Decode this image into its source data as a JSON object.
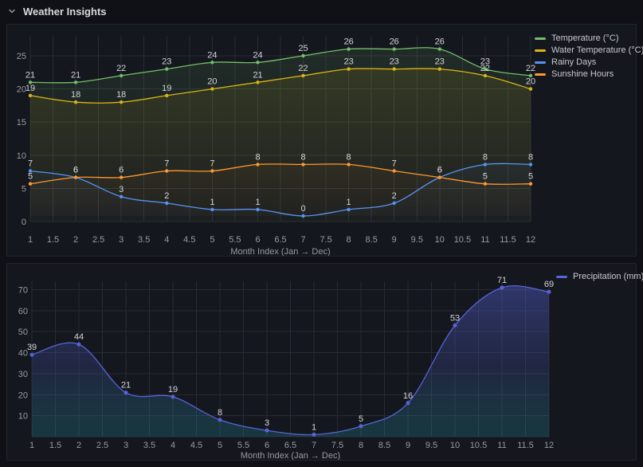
{
  "header": {
    "title": "Weather Insights"
  },
  "colors": {
    "temperature": "#73bf69",
    "water_temperature": "#d9b613",
    "rainy_days": "#5794f2",
    "sunshine_hours": "#ff9830",
    "precipitation": "#5565d9"
  },
  "chart_data": [
    {
      "type": "line",
      "title": "",
      "xlabel": "Month Index (Jan → Dec)",
      "ylabel": "",
      "x": [
        1,
        2,
        3,
        4,
        5,
        6,
        7,
        8,
        9,
        10,
        11,
        12
      ],
      "x_ticks": [
        1,
        1.5,
        2,
        2.5,
        3,
        3.5,
        4,
        4.5,
        5,
        5.5,
        6,
        6.5,
        7,
        7.5,
        8,
        8.5,
        9,
        9.5,
        10,
        10.5,
        11,
        11.5,
        12
      ],
      "ylim": [
        0,
        28
      ],
      "y_ticks": [
        0,
        5,
        10,
        15,
        20,
        25
      ],
      "grid": true,
      "legend_position": "top-right",
      "series": [
        {
          "name": "Temperature (°C)",
          "color": "#73bf69",
          "axis": "left",
          "values": [
            21,
            21,
            22,
            23,
            24,
            24,
            25,
            26,
            26,
            26,
            23,
            22
          ]
        },
        {
          "name": "Water Temperature (°C)",
          "color": "#d9b613",
          "axis": "left",
          "values": [
            19,
            18,
            18,
            19,
            20,
            21,
            22,
            23,
            23,
            23,
            22,
            20
          ]
        },
        {
          "name": "Rainy Days",
          "color": "#5794f2",
          "axis": "right",
          "values": [
            7,
            6,
            3,
            2,
            1,
            1,
            0,
            1,
            2,
            6,
            8,
            8
          ]
        },
        {
          "name": "Sunshine Hours",
          "color": "#ff9830",
          "axis": "right",
          "values": [
            5,
            6,
            6,
            7,
            7,
            8,
            8,
            8,
            7,
            6,
            5,
            5
          ]
        }
      ]
    },
    {
      "type": "area",
      "title": "",
      "xlabel": "Month Index (Jan → Dec)",
      "ylabel": "",
      "x": [
        1,
        2,
        3,
        4,
        5,
        6,
        7,
        8,
        9,
        10,
        11,
        12
      ],
      "x_ticks": [
        1,
        1.5,
        2,
        2.5,
        3,
        3.5,
        4,
        4.5,
        5,
        5.5,
        6,
        6.5,
        7,
        7.5,
        8,
        8.5,
        9,
        9.5,
        10,
        10.5,
        11,
        11.5,
        12
      ],
      "ylim": [
        0,
        74
      ],
      "y_ticks": [
        10,
        20,
        30,
        40,
        50,
        60,
        70
      ],
      "grid": true,
      "legend_position": "top-right",
      "series": [
        {
          "name": "Precipitation (mm)",
          "color": "#5565d9",
          "axis": "left",
          "values": [
            39,
            44,
            21,
            19,
            8,
            3,
            1,
            5,
            16,
            53,
            71,
            69
          ]
        }
      ]
    }
  ]
}
